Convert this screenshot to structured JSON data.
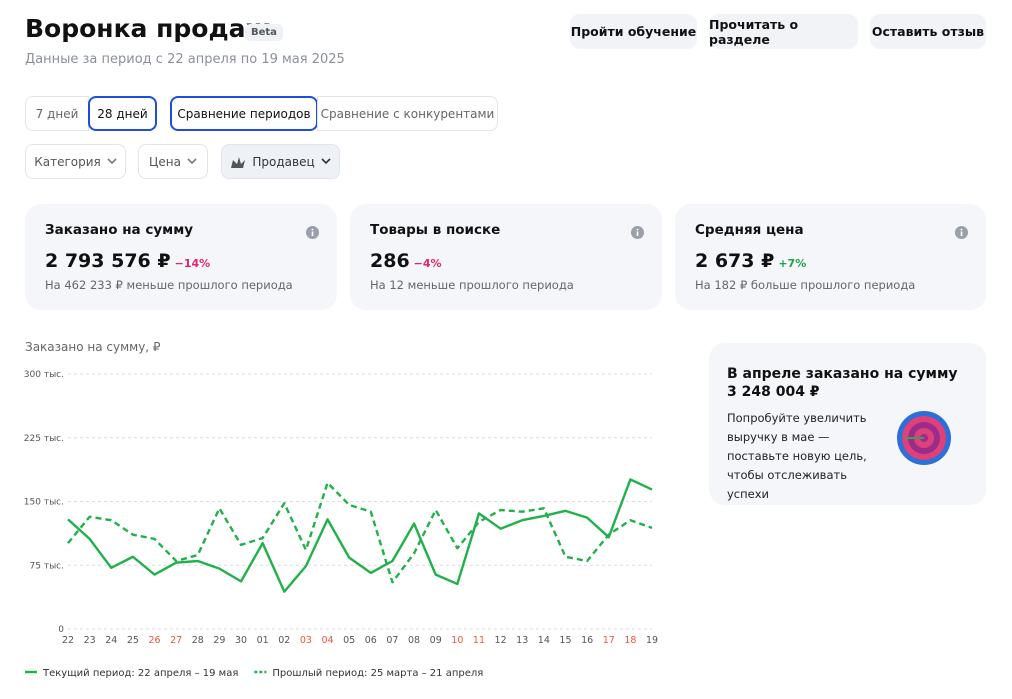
{
  "header": {
    "title": "Воронка продаж",
    "badge": "Beta",
    "subtitle": "Данные за период с 22 апреля по 19 мая 2025",
    "buttons": [
      "Пройти обучение",
      "Прочитать о разделе",
      "Оставить отзыв"
    ]
  },
  "tabs": {
    "periods": [
      "7 дней",
      "28 дней"
    ],
    "modes": [
      "Сравнение периодов",
      "Сравнение с конкурентами"
    ]
  },
  "filters": [
    "Категория",
    "Цена",
    "Продавец"
  ],
  "cards": [
    {
      "title": "Заказано на сумму",
      "value": "2 793 576 ₽",
      "change": "−14%",
      "note": "На 462 233 ₽ меньше прошлого периода"
    },
    {
      "title": "Товары в поиске",
      "value": "286",
      "change": "−4%",
      "note": "На 12 меньше прошлого периода"
    },
    {
      "title": "Средняя цена",
      "value": "2 673 ₽",
      "change": "+7%",
      "note": "На 182 ₽ больше прошлого периода"
    }
  ],
  "goal": {
    "title": "В апреле заказано на сумму",
    "amount": "3 248 004 ₽",
    "text": "Попробуйте увеличить выручку в мае — поставьте новую цель, чтобы отслеживать успехи"
  },
  "chart_data": {
    "type": "line",
    "title": "Заказано на сумму, ₽",
    "categories": [
      "22",
      "23",
      "24",
      "25",
      "26",
      "27",
      "28",
      "29",
      "30",
      "01",
      "02",
      "03",
      "04",
      "05",
      "06",
      "07",
      "08",
      "09",
      "10",
      "11",
      "12",
      "13",
      "14",
      "15",
      "16",
      "17",
      "18",
      "19"
    ],
    "highlighted": [
      4,
      5,
      11,
      12,
      18,
      19,
      25,
      26
    ],
    "highlight_color": "#f0543c",
    "series": [
      {
        "name": "Текущий период: 22 апреля – 19 мая",
        "color": "#22b04b",
        "dashed": false,
        "values": [
          129000,
          106000,
          72000,
          85000,
          64000,
          78000,
          80000,
          71000,
          56000,
          101000,
          44000,
          74000,
          129000,
          84000,
          66000,
          80000,
          124000,
          64000,
          53000,
          136000,
          118000,
          128000,
          133000,
          139000,
          131000,
          108000,
          176000,
          164000
        ]
      },
      {
        "name": "Прошлый период: 25 марта – 21 апреля",
        "color": "#22b04b",
        "dashed": true,
        "values": [
          101000,
          132000,
          128000,
          111000,
          106000,
          80000,
          87000,
          142000,
          99000,
          107000,
          148000,
          93000,
          172000,
          146000,
          138000,
          55000,
          89000,
          140000,
          95000,
          126000,
          140000,
          138000,
          142000,
          85000,
          80000,
          111000,
          128000,
          119000
        ]
      }
    ],
    "ylim": [
      0,
      300000
    ],
    "yticks": [
      0,
      {
        "value": 75000,
        "label": "75 тыс."
      },
      {
        "value": 150000,
        "label": "150 тыс."
      },
      {
        "value": 225000,
        "label": "225 тыс."
      },
      {
        "value": 300000,
        "label": "300 тыс."
      }
    ],
    "grid": true
  }
}
